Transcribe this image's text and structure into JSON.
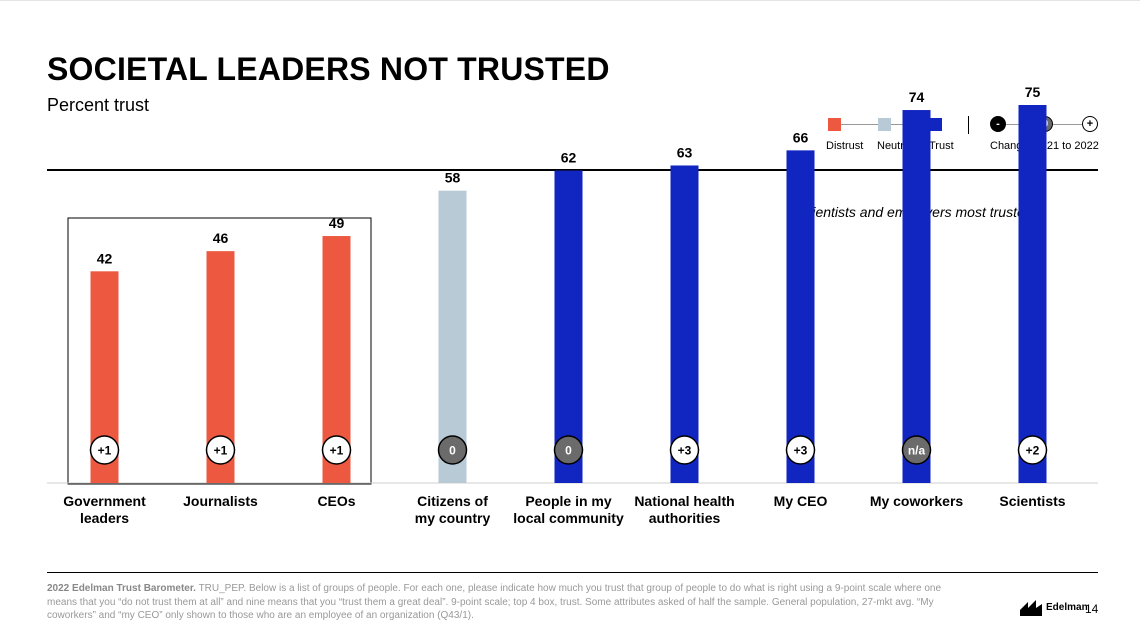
{
  "title": "SOCIETAL LEADERS NOT TRUSTED",
  "subtitle": "Percent trust",
  "legend": {
    "distrust": "Distrust",
    "neutral": "Neutral",
    "trust": "Trust",
    "change_label": "Change, 2021 to 2022",
    "minus": "-",
    "zero": "0",
    "plus": "+"
  },
  "colors": {
    "distrust": "#ec5840",
    "neutral": "#b7cad6",
    "trust": "#1126c1",
    "change_zero": "#6b6b6b"
  },
  "note": "Scientists and employers most trusted",
  "chart_data": {
    "type": "bar",
    "categories": [
      "Government leaders",
      "Journalists",
      "CEOs",
      "Citizens of my country",
      "People in my local community",
      "National health authorities",
      "My CEO",
      "My coworkers",
      "Scientists"
    ],
    "category_lines": [
      [
        "Government",
        "leaders"
      ],
      [
        "Journalists"
      ],
      [
        "CEOs"
      ],
      [
        "Citizens of",
        "my country"
      ],
      [
        "People in my",
        "local community"
      ],
      [
        "National health",
        "authorities"
      ],
      [
        "My CEO"
      ],
      [
        "My coworkers"
      ],
      [
        "Scientists"
      ]
    ],
    "values": [
      42,
      46,
      49,
      58,
      62,
      63,
      66,
      74,
      75
    ],
    "value_labels": [
      "42",
      "46",
      "49",
      "58",
      "62",
      "63",
      "66",
      "74",
      "75"
    ],
    "categories_rating": [
      "distrust",
      "distrust",
      "distrust",
      "neutral",
      "trust",
      "trust",
      "trust",
      "trust",
      "trust"
    ],
    "changes": [
      "+1",
      "+1",
      "+1",
      "0",
      "0",
      "+3",
      "+3",
      "n/a",
      "+2"
    ],
    "ylim": [
      0,
      100
    ]
  },
  "footer": {
    "source": "2022 Edelman Trust Barometer.",
    "text": " TRU_PEP. Below is a list of groups of people. For each one, please indicate how much you trust that group of people to do what is right using a 9-point scale where one means that you “do not trust them at all” and nine means that you “trust them a great deal”. 9-point scale; top 4 box, trust. Some attributes asked of half the sample. General population, 27-mkt avg. “My coworkers” and “my CEO” only shown to those who are an employee of an organization (Q43/1)."
  },
  "brand": "Edelman",
  "page_number": "14"
}
